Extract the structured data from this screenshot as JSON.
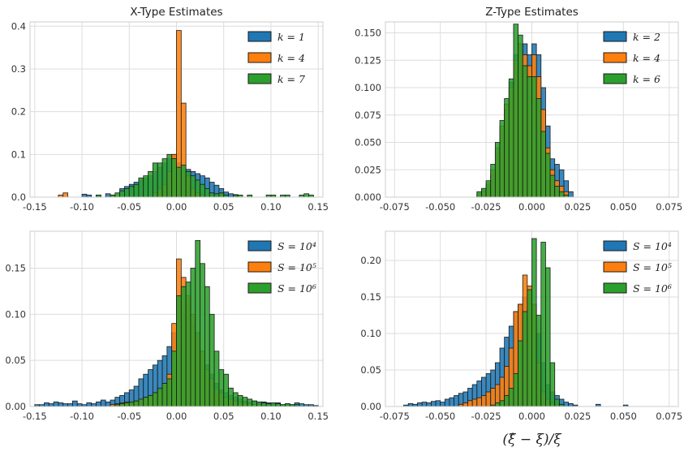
{
  "colors": {
    "blue": "#1f77b4",
    "orange": "#ff7f0e",
    "green": "#2ca02c",
    "grid": "#dddddd",
    "frame": "#cccccc"
  },
  "chart_data": [
    {
      "type": "histogram",
      "title": "X-Type Estimates",
      "xlabel": "",
      "ylabel": "",
      "xlim": [
        -0.155,
        0.155
      ],
      "ylim": [
        0,
        0.41
      ],
      "xticks": [
        "-0.15",
        "-0.10",
        "-0.05",
        "0.00",
        "0.05",
        "0.10",
        "0.15"
      ],
      "xtick_values": [
        -0.15,
        -0.1,
        -0.05,
        0.0,
        0.05,
        0.1,
        0.15
      ],
      "yticks": [
        "0.0",
        "0.1",
        "0.2",
        "0.3",
        "0.4"
      ],
      "ytick_values": [
        0.0,
        0.1,
        0.2,
        0.3,
        0.4
      ],
      "grid": true,
      "legend": "top-right",
      "bin_start": -0.15,
      "bin_width": 0.005,
      "series": [
        {
          "name": "k = 1",
          "color": "blue",
          "values": [
            0,
            0,
            0,
            0,
            0,
            0,
            0,
            0,
            0,
            0,
            0.007,
            0.005,
            0,
            0.005,
            0,
            0.008,
            0.005,
            0,
            0.02,
            0.025,
            0.03,
            0.035,
            0.04,
            0.045,
            0.05,
            0.06,
            0.07,
            0.08,
            0.09,
            0.1,
            0.08,
            0.07,
            0.065,
            0.06,
            0.055,
            0.05,
            0.045,
            0.035,
            0.028,
            0.02,
            0.012,
            0.008,
            0.006,
            0,
            0,
            0,
            0,
            0,
            0,
            0,
            0,
            0,
            0,
            0,
            0,
            0,
            0,
            0,
            0,
            0,
            0
          ]
        },
        {
          "name": "k = 4",
          "color": "orange",
          "values": [
            0,
            0,
            0,
            0,
            0,
            0.005,
            0.01,
            0,
            0,
            0,
            0,
            0,
            0,
            0,
            0,
            0,
            0.005,
            0,
            0,
            0,
            0,
            0,
            0,
            0,
            0,
            0.01,
            0.02,
            0.03,
            0.06,
            0.1,
            0.39,
            0.22,
            0.05,
            0.02,
            0.01,
            0.005,
            0,
            0,
            0,
            0.008,
            0,
            0,
            0,
            0,
            0,
            0,
            0,
            0,
            0,
            0,
            0,
            0,
            0,
            0,
            0,
            0,
            0,
            0,
            0,
            0,
            0
          ]
        },
        {
          "name": "k = 7",
          "color": "green",
          "values": [
            0,
            0,
            0,
            0,
            0,
            0,
            0,
            0,
            0,
            0,
            0,
            0,
            0,
            0.005,
            0,
            0,
            0.005,
            0.01,
            0.015,
            0.02,
            0.025,
            0.03,
            0.045,
            0.05,
            0.06,
            0.08,
            0.08,
            0.09,
            0.1,
            0.09,
            0.07,
            0.075,
            0.06,
            0.05,
            0.04,
            0.03,
            0.02,
            0.01,
            0.008,
            0.01,
            0.005,
            0,
            0.005,
            0.005,
            0,
            0.005,
            0,
            0,
            0,
            0.005,
            0.005,
            0,
            0.005,
            0.005,
            0,
            0,
            0.005,
            0.008,
            0.005,
            0,
            0
          ]
        }
      ]
    },
    {
      "type": "histogram",
      "title": "Z-Type Estimates",
      "xlabel": "",
      "ylabel": "",
      "xlim": [
        -0.08,
        0.08
      ],
      "ylim": [
        0,
        0.16
      ],
      "xticks": [
        "-0.075",
        "-0.050",
        "-0.025",
        "0.000",
        "0.025",
        "0.050",
        "0.075"
      ],
      "xtick_values": [
        -0.075,
        -0.05,
        -0.025,
        0.0,
        0.025,
        0.05,
        0.075
      ],
      "yticks": [
        "0.000",
        "0.025",
        "0.050",
        "0.075",
        "0.100",
        "0.125",
        "0.150"
      ],
      "ytick_values": [
        0,
        0.025,
        0.05,
        0.075,
        0.1,
        0.125,
        0.15
      ],
      "grid": true,
      "legend": "top-right",
      "bin_start": -0.03,
      "bin_width": 0.0025,
      "series": [
        {
          "name": "k = 2",
          "color": "blue",
          "values": [
            0.002,
            0.006,
            0.01,
            0.02,
            0.04,
            0.06,
            0.08,
            0.105,
            0.13,
            0.14,
            0.14,
            0.13,
            0.14,
            0.13,
            0.1,
            0.065,
            0.035,
            0.03,
            0.025,
            0.015,
            0.005,
            0,
            0,
            0
          ]
        },
        {
          "name": "k = 4",
          "color": "orange",
          "values": [
            0.003,
            0.006,
            0.012,
            0.025,
            0.045,
            0.065,
            0.085,
            0.1,
            0.125,
            0.14,
            0.13,
            0.12,
            0.13,
            0.11,
            0.08,
            0.045,
            0.025,
            0.015,
            0.01,
            0.005,
            0,
            0,
            0,
            0
          ]
        },
        {
          "name": "k = 6",
          "color": "green",
          "values": [
            0.005,
            0.008,
            0.015,
            0.03,
            0.05,
            0.07,
            0.09,
            0.108,
            0.158,
            0.148,
            0.12,
            0.11,
            0.11,
            0.09,
            0.06,
            0.04,
            0.02,
            0.01,
            0.005,
            0.002,
            0,
            0,
            0,
            0
          ]
        }
      ]
    },
    {
      "type": "histogram",
      "title": "",
      "xlabel": "",
      "ylabel": "",
      "xlim": [
        -0.155,
        0.155
      ],
      "ylim": [
        0,
        0.19
      ],
      "xticks": [
        "-0.15",
        "-0.10",
        "-0.05",
        "0.00",
        "0.05",
        "0.10",
        "0.15"
      ],
      "xtick_values": [
        -0.15,
        -0.1,
        -0.05,
        0.0,
        0.05,
        0.1,
        0.15
      ],
      "yticks": [
        "0.00",
        "0.05",
        "0.10",
        "0.15"
      ],
      "ytick_values": [
        0,
        0.05,
        0.1,
        0.15
      ],
      "grid": true,
      "legend": "top-right",
      "bin_start": -0.15,
      "bin_width": 0.005,
      "series": [
        {
          "name": "S = 10⁴",
          "color": "blue",
          "values": [
            0.002,
            0.002,
            0.004,
            0.003,
            0.005,
            0.004,
            0.003,
            0.003,
            0.006,
            0.003,
            0.002,
            0.004,
            0.003,
            0.005,
            0.007,
            0.005,
            0.007,
            0.01,
            0.012,
            0.015,
            0.018,
            0.022,
            0.03,
            0.035,
            0.04,
            0.045,
            0.05,
            0.055,
            0.065,
            0.08,
            0.12,
            0.1,
            0.11,
            0.09,
            0.08,
            0.06,
            0.045,
            0.035,
            0.025,
            0.018,
            0.015,
            0.012,
            0.01,
            0.008,
            0.006,
            0.005,
            0.006,
            0.004,
            0.005,
            0.004,
            0.003,
            0.004,
            0.002,
            0.003,
            0.002,
            0.004,
            0.003,
            0.002,
            0.002,
            0.001,
            0
          ]
        },
        {
          "name": "S = 10⁵",
          "color": "orange",
          "values": [
            0,
            0,
            0,
            0,
            0,
            0,
            0,
            0,
            0,
            0,
            0,
            0,
            0,
            0,
            0,
            0,
            0.002,
            0.003,
            0.004,
            0.005,
            0.004,
            0.006,
            0.008,
            0.01,
            0.012,
            0.015,
            0.018,
            0.025,
            0.035,
            0.09,
            0.16,
            0.14,
            0.12,
            0.1,
            0.08,
            0.06,
            0.04,
            0.03,
            0.02,
            0.015,
            0.01,
            0.008,
            0.006,
            0.005,
            0.004,
            0.003,
            0.002,
            0.002,
            0.001,
            0,
            0,
            0,
            0,
            0,
            0,
            0,
            0,
            0,
            0,
            0,
            0
          ]
        },
        {
          "name": "S = 10⁶",
          "color": "green",
          "values": [
            0,
            0,
            0,
            0,
            0,
            0,
            0,
            0,
            0,
            0,
            0,
            0,
            0,
            0,
            0,
            0,
            0,
            0.002,
            0.003,
            0.004,
            0.005,
            0.006,
            0.008,
            0.01,
            0.012,
            0.015,
            0.02,
            0.025,
            0.03,
            0.06,
            0.12,
            0.13,
            0.135,
            0.15,
            0.18,
            0.155,
            0.13,
            0.1,
            0.06,
            0.04,
            0.035,
            0.02,
            0.015,
            0.012,
            0.01,
            0.008,
            0.006,
            0.005,
            0.004,
            0.003,
            0.004,
            0.003,
            0.002,
            0.003,
            0.002,
            0.002,
            0,
            0,
            0,
            0,
            0
          ]
        }
      ]
    },
    {
      "type": "histogram",
      "title": "",
      "xlabel": "(ξ̂ − ξ)/ξ",
      "ylabel": "",
      "xlim": [
        -0.08,
        0.08
      ],
      "ylim": [
        0,
        0.24
      ],
      "xticks": [
        "-0.075",
        "-0.050",
        "-0.025",
        "0.000",
        "0.025",
        "0.050",
        "0.075"
      ],
      "xtick_values": [
        -0.075,
        -0.05,
        -0.025,
        0.0,
        0.025,
        0.05,
        0.075
      ],
      "yticks": [
        "0.00",
        "0.05",
        "0.10",
        "0.15",
        "0.20"
      ],
      "ytick_values": [
        0,
        0.05,
        0.1,
        0.15,
        0.2
      ],
      "grid": true,
      "legend": "top-right",
      "bin_start": -0.07,
      "bin_width": 0.0025,
      "series": [
        {
          "name": "S = 10⁴",
          "color": "blue",
          "values": [
            0.002,
            0.004,
            0.003,
            0.005,
            0.006,
            0.005,
            0.007,
            0.008,
            0.006,
            0.01,
            0.012,
            0.015,
            0.018,
            0.02,
            0.025,
            0.03,
            0.035,
            0.04,
            0.045,
            0.05,
            0.06,
            0.08,
            0.095,
            0.11,
            0.13,
            0.14,
            0.15,
            0.16,
            0.14,
            0.1,
            0.06,
            0.03,
            0.02,
            0.015,
            0.01,
            0.006,
            0.004,
            0.002,
            0,
            0,
            0,
            0,
            0.003,
            0,
            0,
            0,
            0,
            0,
            0.002
          ]
        },
        {
          "name": "S = 10⁵",
          "color": "orange",
          "values": [
            0,
            0,
            0,
            0,
            0,
            0,
            0,
            0,
            0,
            0,
            0,
            0,
            0.003,
            0.005,
            0.008,
            0.01,
            0.012,
            0.015,
            0.02,
            0.025,
            0.03,
            0.04,
            0.055,
            0.08,
            0.13,
            0.14,
            0.18,
            0.165,
            0.14,
            0.06,
            0.02,
            0.01,
            0.005,
            0.003,
            0,
            0,
            0,
            0,
            0,
            0,
            0,
            0,
            0,
            0,
            0,
            0,
            0,
            0,
            0
          ]
        },
        {
          "name": "S = 10⁶",
          "color": "green",
          "values": [
            0,
            0,
            0,
            0,
            0,
            0,
            0,
            0,
            0,
            0,
            0,
            0,
            0,
            0,
            0,
            0,
            0,
            0,
            0,
            0.002,
            0.005,
            0.008,
            0.015,
            0.025,
            0.045,
            0.09,
            0.13,
            0.16,
            0.23,
            0.125,
            0.225,
            0.19,
            0.06,
            0.01,
            0.003,
            0,
            0,
            0,
            0,
            0,
            0,
            0,
            0,
            0,
            0,
            0,
            0,
            0,
            0
          ]
        }
      ]
    }
  ]
}
